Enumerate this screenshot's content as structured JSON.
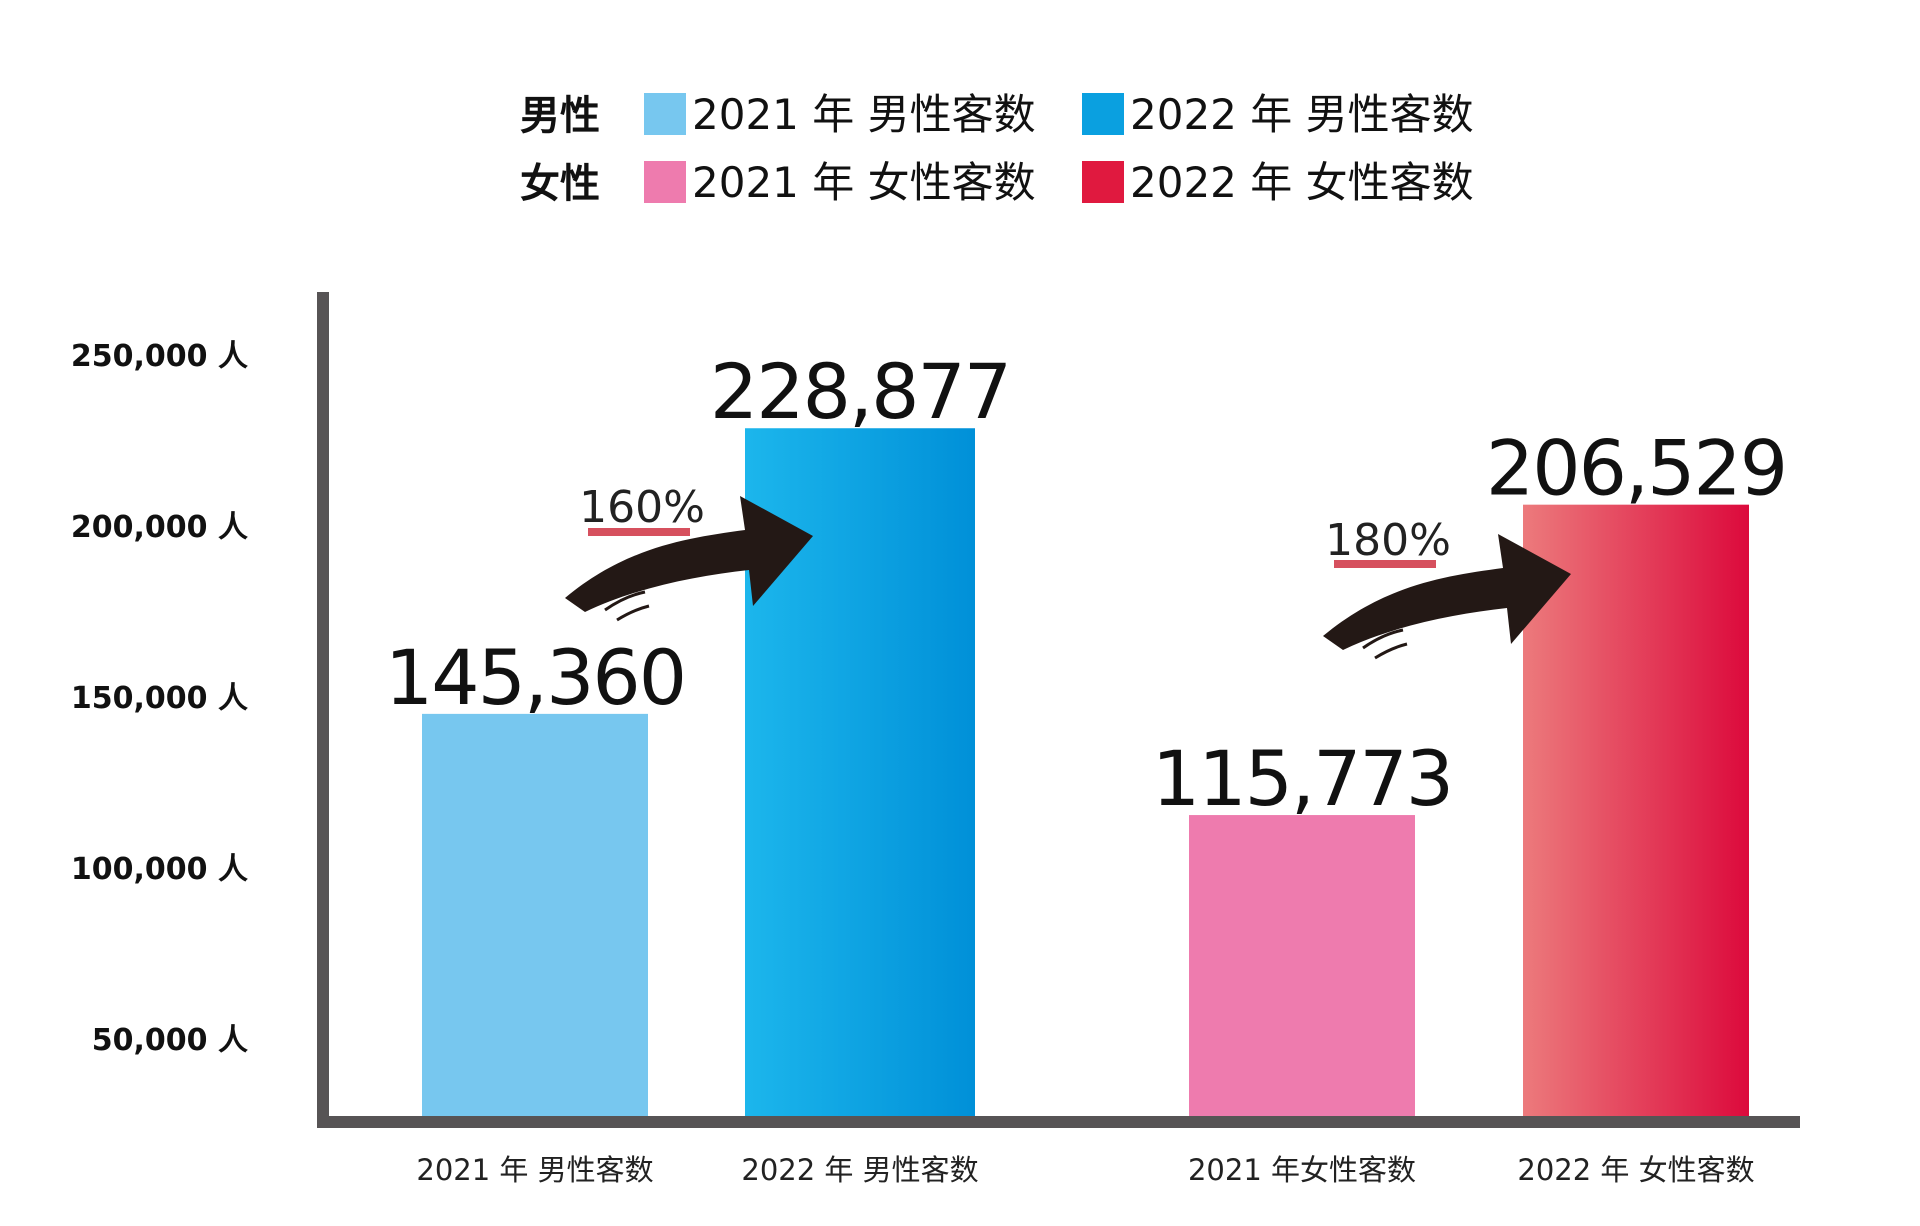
{
  "legend": {
    "rows": [
      {
        "label": "男性",
        "items": [
          {
            "text": "2021 年 男性客数",
            "color": "#77c7ef"
          },
          {
            "text": "2022 年 男性客数",
            "color": "#0aa0e0"
          }
        ]
      },
      {
        "label": "女性",
        "items": [
          {
            "text": "2021 年 女性客数",
            "color": "#ee7bae"
          },
          {
            "text": "2022 年 女性客数",
            "color": "#e0193f"
          }
        ]
      }
    ]
  },
  "growth": [
    {
      "text": "160%",
      "from": 0,
      "to": 1
    },
    {
      "text": "180%",
      "from": 2,
      "to": 3
    }
  ],
  "chart_data": {
    "type": "bar",
    "categories": [
      "2021 年 男性客数",
      "2022 年 男性客数",
      "2021 年女性客数",
      "2022 年 女性客数"
    ],
    "values": [
      145360,
      228877,
      115773,
      206529
    ],
    "value_labels": [
      "145,360",
      "228,877",
      "115,773",
      "206,529"
    ],
    "colors": [
      [
        "#77c7ef",
        "#77c7ef"
      ],
      [
        "#1cb6ec",
        "#0090d8"
      ],
      [
        "#ee7bae",
        "#ee7bae"
      ],
      [
        "#ec7a7c",
        "#dc0a3c"
      ]
    ],
    "yticks": [
      {
        "value": 50000,
        "label": "50,000 人"
      },
      {
        "value": 100000,
        "label": "100,000 人"
      },
      {
        "value": 150000,
        "label": "150,000 人"
      },
      {
        "value": 200000,
        "label": "200,000 人"
      },
      {
        "value": 250000,
        "label": "250,000 人"
      }
    ],
    "ylim": [
      0,
      250000
    ],
    "title": "",
    "xlabel": "",
    "ylabel": ""
  }
}
